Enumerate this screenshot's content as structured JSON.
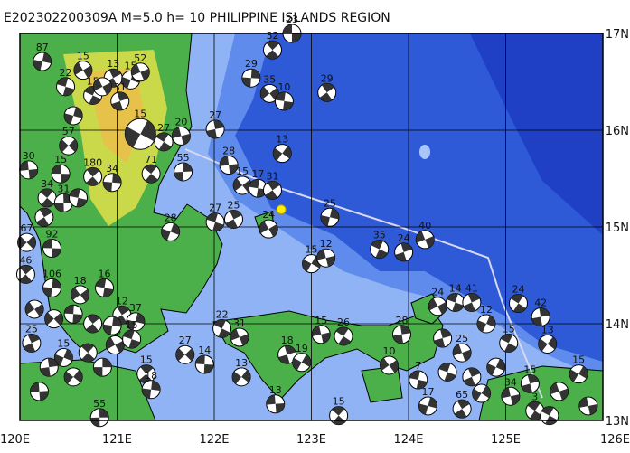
{
  "header": {
    "title": "E202302200309A M=5.0 h= 10 PHILIPPINE ISLANDS REGION"
  },
  "map": {
    "xlim": [
      120,
      126
    ],
    "ylim": [
      13,
      17
    ],
    "xticks": [
      {
        "value": 120,
        "label": "120E"
      },
      {
        "value": 121,
        "label": "121E"
      },
      {
        "value": 122,
        "label": "122E"
      },
      {
        "value": 123,
        "label": "123E"
      },
      {
        "value": 124,
        "label": "124E"
      },
      {
        "value": 125,
        "label": "125E"
      },
      {
        "value": 126,
        "label": "126E"
      }
    ],
    "yticks": [
      {
        "value": 13,
        "label": "13N"
      },
      {
        "value": 14,
        "label": "14N"
      },
      {
        "value": 15,
        "label": "15N"
      },
      {
        "value": 16,
        "label": "16N"
      },
      {
        "value": 17,
        "label": "17N"
      }
    ],
    "grid": true,
    "epicenter": {
      "lon": 122.69,
      "lat": 15.18
    },
    "events": [
      {
        "lon": 122.8,
        "lat": 17.0,
        "label": "23",
        "main": false
      },
      {
        "lon": 122.6,
        "lat": 16.83,
        "label": "32",
        "main": false
      },
      {
        "lon": 122.38,
        "lat": 16.54,
        "label": "29",
        "main": false
      },
      {
        "lon": 122.57,
        "lat": 16.38,
        "label": "35",
        "main": false
      },
      {
        "lon": 122.72,
        "lat": 16.3,
        "label": "10",
        "main": false
      },
      {
        "lon": 123.16,
        "lat": 16.39,
        "label": "29",
        "main": false
      },
      {
        "lon": 120.23,
        "lat": 16.71,
        "label": "87",
        "main": false
      },
      {
        "lon": 120.65,
        "lat": 16.62,
        "label": "15",
        "main": false
      },
      {
        "lon": 120.47,
        "lat": 16.45,
        "label": "22",
        "main": false
      },
      {
        "lon": 120.96,
        "lat": 16.54,
        "label": "13",
        "main": false
      },
      {
        "lon": 121.14,
        "lat": 16.52,
        "label": "15",
        "main": false
      },
      {
        "lon": 121.24,
        "lat": 16.6,
        "label": "52",
        "main": false
      },
      {
        "lon": 120.75,
        "lat": 16.36,
        "label": "15",
        "main": false
      },
      {
        "lon": 121.03,
        "lat": 16.3,
        "label": "31",
        "main": false
      },
      {
        "lon": 121.24,
        "lat": 15.96,
        "label": "15",
        "main": true
      },
      {
        "lon": 121.66,
        "lat": 15.94,
        "label": "20",
        "main": false
      },
      {
        "lon": 121.48,
        "lat": 15.88,
        "label": "27",
        "main": false
      },
      {
        "lon": 122.01,
        "lat": 16.01,
        "label": "27",
        "main": false
      },
      {
        "lon": 122.7,
        "lat": 15.76,
        "label": "13",
        "main": false
      },
      {
        "lon": 122.15,
        "lat": 15.64,
        "label": "28",
        "main": false
      },
      {
        "lon": 121.35,
        "lat": 15.55,
        "label": "71",
        "main": false
      },
      {
        "lon": 121.68,
        "lat": 15.57,
        "label": "55",
        "main": false
      },
      {
        "lon": 120.5,
        "lat": 15.84,
        "label": "57",
        "main": false
      },
      {
        "lon": 120.42,
        "lat": 15.55,
        "label": "15",
        "main": false
      },
      {
        "lon": 120.75,
        "lat": 15.52,
        "label": "180",
        "main": false
      },
      {
        "lon": 120.95,
        "lat": 15.46,
        "label": "34",
        "main": false
      },
      {
        "lon": 122.29,
        "lat": 15.43,
        "label": "15",
        "main": false
      },
      {
        "lon": 122.45,
        "lat": 15.4,
        "label": "17",
        "main": false
      },
      {
        "lon": 122.6,
        "lat": 15.38,
        "label": "31",
        "main": false
      },
      {
        "lon": 123.19,
        "lat": 15.1,
        "label": "25",
        "main": false
      },
      {
        "lon": 122.56,
        "lat": 14.98,
        "label": "24",
        "main": false
      },
      {
        "lon": 122.01,
        "lat": 15.05,
        "label": "27",
        "main": false
      },
      {
        "lon": 122.2,
        "lat": 15.08,
        "label": "25",
        "main": false
      },
      {
        "lon": 121.55,
        "lat": 14.95,
        "label": "28",
        "main": false
      },
      {
        "lon": 124.17,
        "lat": 14.87,
        "label": "40",
        "main": false
      },
      {
        "lon": 123.7,
        "lat": 14.77,
        "label": "35",
        "main": false
      },
      {
        "lon": 123.95,
        "lat": 14.74,
        "label": "24",
        "main": false
      },
      {
        "lon": 123.0,
        "lat": 14.62,
        "label": "15",
        "main": false
      },
      {
        "lon": 123.15,
        "lat": 14.68,
        "label": "12",
        "main": false
      },
      {
        "lon": 125.13,
        "lat": 14.21,
        "label": "24",
        "main": false
      },
      {
        "lon": 125.36,
        "lat": 14.07,
        "label": "42",
        "main": false
      },
      {
        "lon": 125.43,
        "lat": 13.79,
        "label": "13",
        "main": false
      },
      {
        "lon": 120.09,
        "lat": 15.59,
        "label": "30",
        "main": false
      },
      {
        "lon": 120.28,
        "lat": 15.3,
        "label": "34",
        "main": false
      },
      {
        "lon": 120.45,
        "lat": 15.25,
        "label": "31",
        "main": false
      },
      {
        "lon": 120.07,
        "lat": 14.84,
        "label": "67",
        "main": false
      },
      {
        "lon": 120.33,
        "lat": 14.78,
        "label": "92",
        "main": false
      },
      {
        "lon": 120.06,
        "lat": 14.51,
        "label": "46",
        "main": false
      },
      {
        "lon": 120.33,
        "lat": 14.37,
        "label": "106",
        "main": false
      },
      {
        "lon": 120.62,
        "lat": 14.3,
        "label": "18",
        "main": false
      },
      {
        "lon": 120.87,
        "lat": 14.37,
        "label": "16",
        "main": false
      },
      {
        "lon": 121.05,
        "lat": 14.09,
        "label": "12",
        "main": false
      },
      {
        "lon": 121.19,
        "lat": 14.02,
        "label": "37",
        "main": false
      },
      {
        "lon": 120.98,
        "lat": 13.78,
        "label": "24",
        "main": false
      },
      {
        "lon": 121.15,
        "lat": 13.84,
        "label": "15",
        "main": false
      },
      {
        "lon": 120.12,
        "lat": 13.8,
        "label": "25",
        "main": false
      },
      {
        "lon": 120.45,
        "lat": 13.65,
        "label": "15",
        "main": false
      },
      {
        "lon": 122.26,
        "lat": 13.86,
        "label": "31",
        "main": false
      },
      {
        "lon": 122.08,
        "lat": 13.95,
        "label": "22",
        "main": false
      },
      {
        "lon": 122.75,
        "lat": 13.68,
        "label": "18",
        "main": false
      },
      {
        "lon": 122.9,
        "lat": 13.6,
        "label": "19",
        "main": false
      },
      {
        "lon": 123.1,
        "lat": 13.89,
        "label": "15",
        "main": false
      },
      {
        "lon": 123.33,
        "lat": 13.87,
        "label": "26",
        "main": false
      },
      {
        "lon": 123.93,
        "lat": 13.89,
        "label": "28",
        "main": false
      },
      {
        "lon": 122.28,
        "lat": 13.45,
        "label": "13",
        "main": false
      },
      {
        "lon": 122.63,
        "lat": 13.17,
        "label": "13",
        "main": false
      },
      {
        "lon": 123.28,
        "lat": 13.05,
        "label": "15",
        "main": false
      },
      {
        "lon": 120.82,
        "lat": 13.03,
        "label": "55",
        "main": false
      },
      {
        "lon": 121.7,
        "lat": 13.68,
        "label": "27",
        "main": false
      },
      {
        "lon": 121.9,
        "lat": 13.58,
        "label": "14",
        "main": false
      },
      {
        "lon": 121.3,
        "lat": 13.48,
        "label": "15",
        "main": false
      },
      {
        "lon": 121.35,
        "lat": 13.32,
        "label": "18",
        "main": false
      },
      {
        "lon": 123.8,
        "lat": 13.57,
        "label": "10",
        "main": false
      },
      {
        "lon": 124.1,
        "lat": 13.42,
        "label": "7",
        "main": false
      },
      {
        "lon": 124.55,
        "lat": 13.12,
        "label": "65",
        "main": false
      },
      {
        "lon": 124.2,
        "lat": 13.15,
        "label": "17",
        "main": false
      },
      {
        "lon": 124.3,
        "lat": 14.18,
        "label": "24",
        "main": false
      },
      {
        "lon": 124.48,
        "lat": 14.22,
        "label": "14",
        "main": false
      },
      {
        "lon": 124.65,
        "lat": 14.22,
        "label": "41",
        "main": false
      },
      {
        "lon": 124.8,
        "lat": 14.0,
        "label": "12",
        "main": false
      },
      {
        "lon": 124.55,
        "lat": 13.7,
        "label": "25",
        "main": false
      },
      {
        "lon": 125.03,
        "lat": 13.8,
        "label": "15",
        "main": false
      },
      {
        "lon": 125.25,
        "lat": 13.38,
        "label": "15",
        "main": false
      },
      {
        "lon": 125.75,
        "lat": 13.48,
        "label": "15",
        "main": false
      },
      {
        "lon": 125.05,
        "lat": 13.25,
        "label": "34",
        "main": false
      },
      {
        "lon": 125.3,
        "lat": 13.1,
        "label": "3",
        "main": false
      },
      {
        "lon": 120.3,
        "lat": 13.55,
        "label": null,
        "main": false
      },
      {
        "lon": 120.55,
        "lat": 13.45,
        "label": null,
        "main": false
      },
      {
        "lon": 120.2,
        "lat": 13.3,
        "label": null,
        "main": false
      },
      {
        "lon": 120.7,
        "lat": 13.7,
        "label": null,
        "main": false
      },
      {
        "lon": 120.85,
        "lat": 13.55,
        "label": null,
        "main": false
      },
      {
        "lon": 120.35,
        "lat": 14.05,
        "label": null,
        "main": false
      },
      {
        "lon": 120.55,
        "lat": 14.1,
        "label": null,
        "main": false
      },
      {
        "lon": 120.75,
        "lat": 14.0,
        "label": null,
        "main": false
      },
      {
        "lon": 120.95,
        "lat": 13.98,
        "label": null,
        "main": false
      },
      {
        "lon": 120.15,
        "lat": 14.15,
        "label": null,
        "main": false
      },
      {
        "lon": 120.6,
        "lat": 15.3,
        "label": null,
        "main": false
      },
      {
        "lon": 120.25,
        "lat": 15.1,
        "label": null,
        "main": false
      },
      {
        "lon": 120.55,
        "lat": 16.15,
        "label": null,
        "main": false
      },
      {
        "lon": 120.85,
        "lat": 16.45,
        "label": null,
        "main": false
      },
      {
        "lon": 124.4,
        "lat": 13.5,
        "label": null,
        "main": false
      },
      {
        "lon": 124.65,
        "lat": 13.45,
        "label": null,
        "main": false
      },
      {
        "lon": 124.9,
        "lat": 13.55,
        "label": null,
        "main": false
      },
      {
        "lon": 125.55,
        "lat": 13.3,
        "label": null,
        "main": false
      },
      {
        "lon": 125.45,
        "lat": 13.05,
        "label": null,
        "main": false
      },
      {
        "lon": 124.35,
        "lat": 13.85,
        "label": null,
        "main": false
      },
      {
        "lon": 124.75,
        "lat": 13.28,
        "label": null,
        "main": false
      },
      {
        "lon": 125.85,
        "lat": 13.15,
        "label": null,
        "main": false
      }
    ]
  }
}
